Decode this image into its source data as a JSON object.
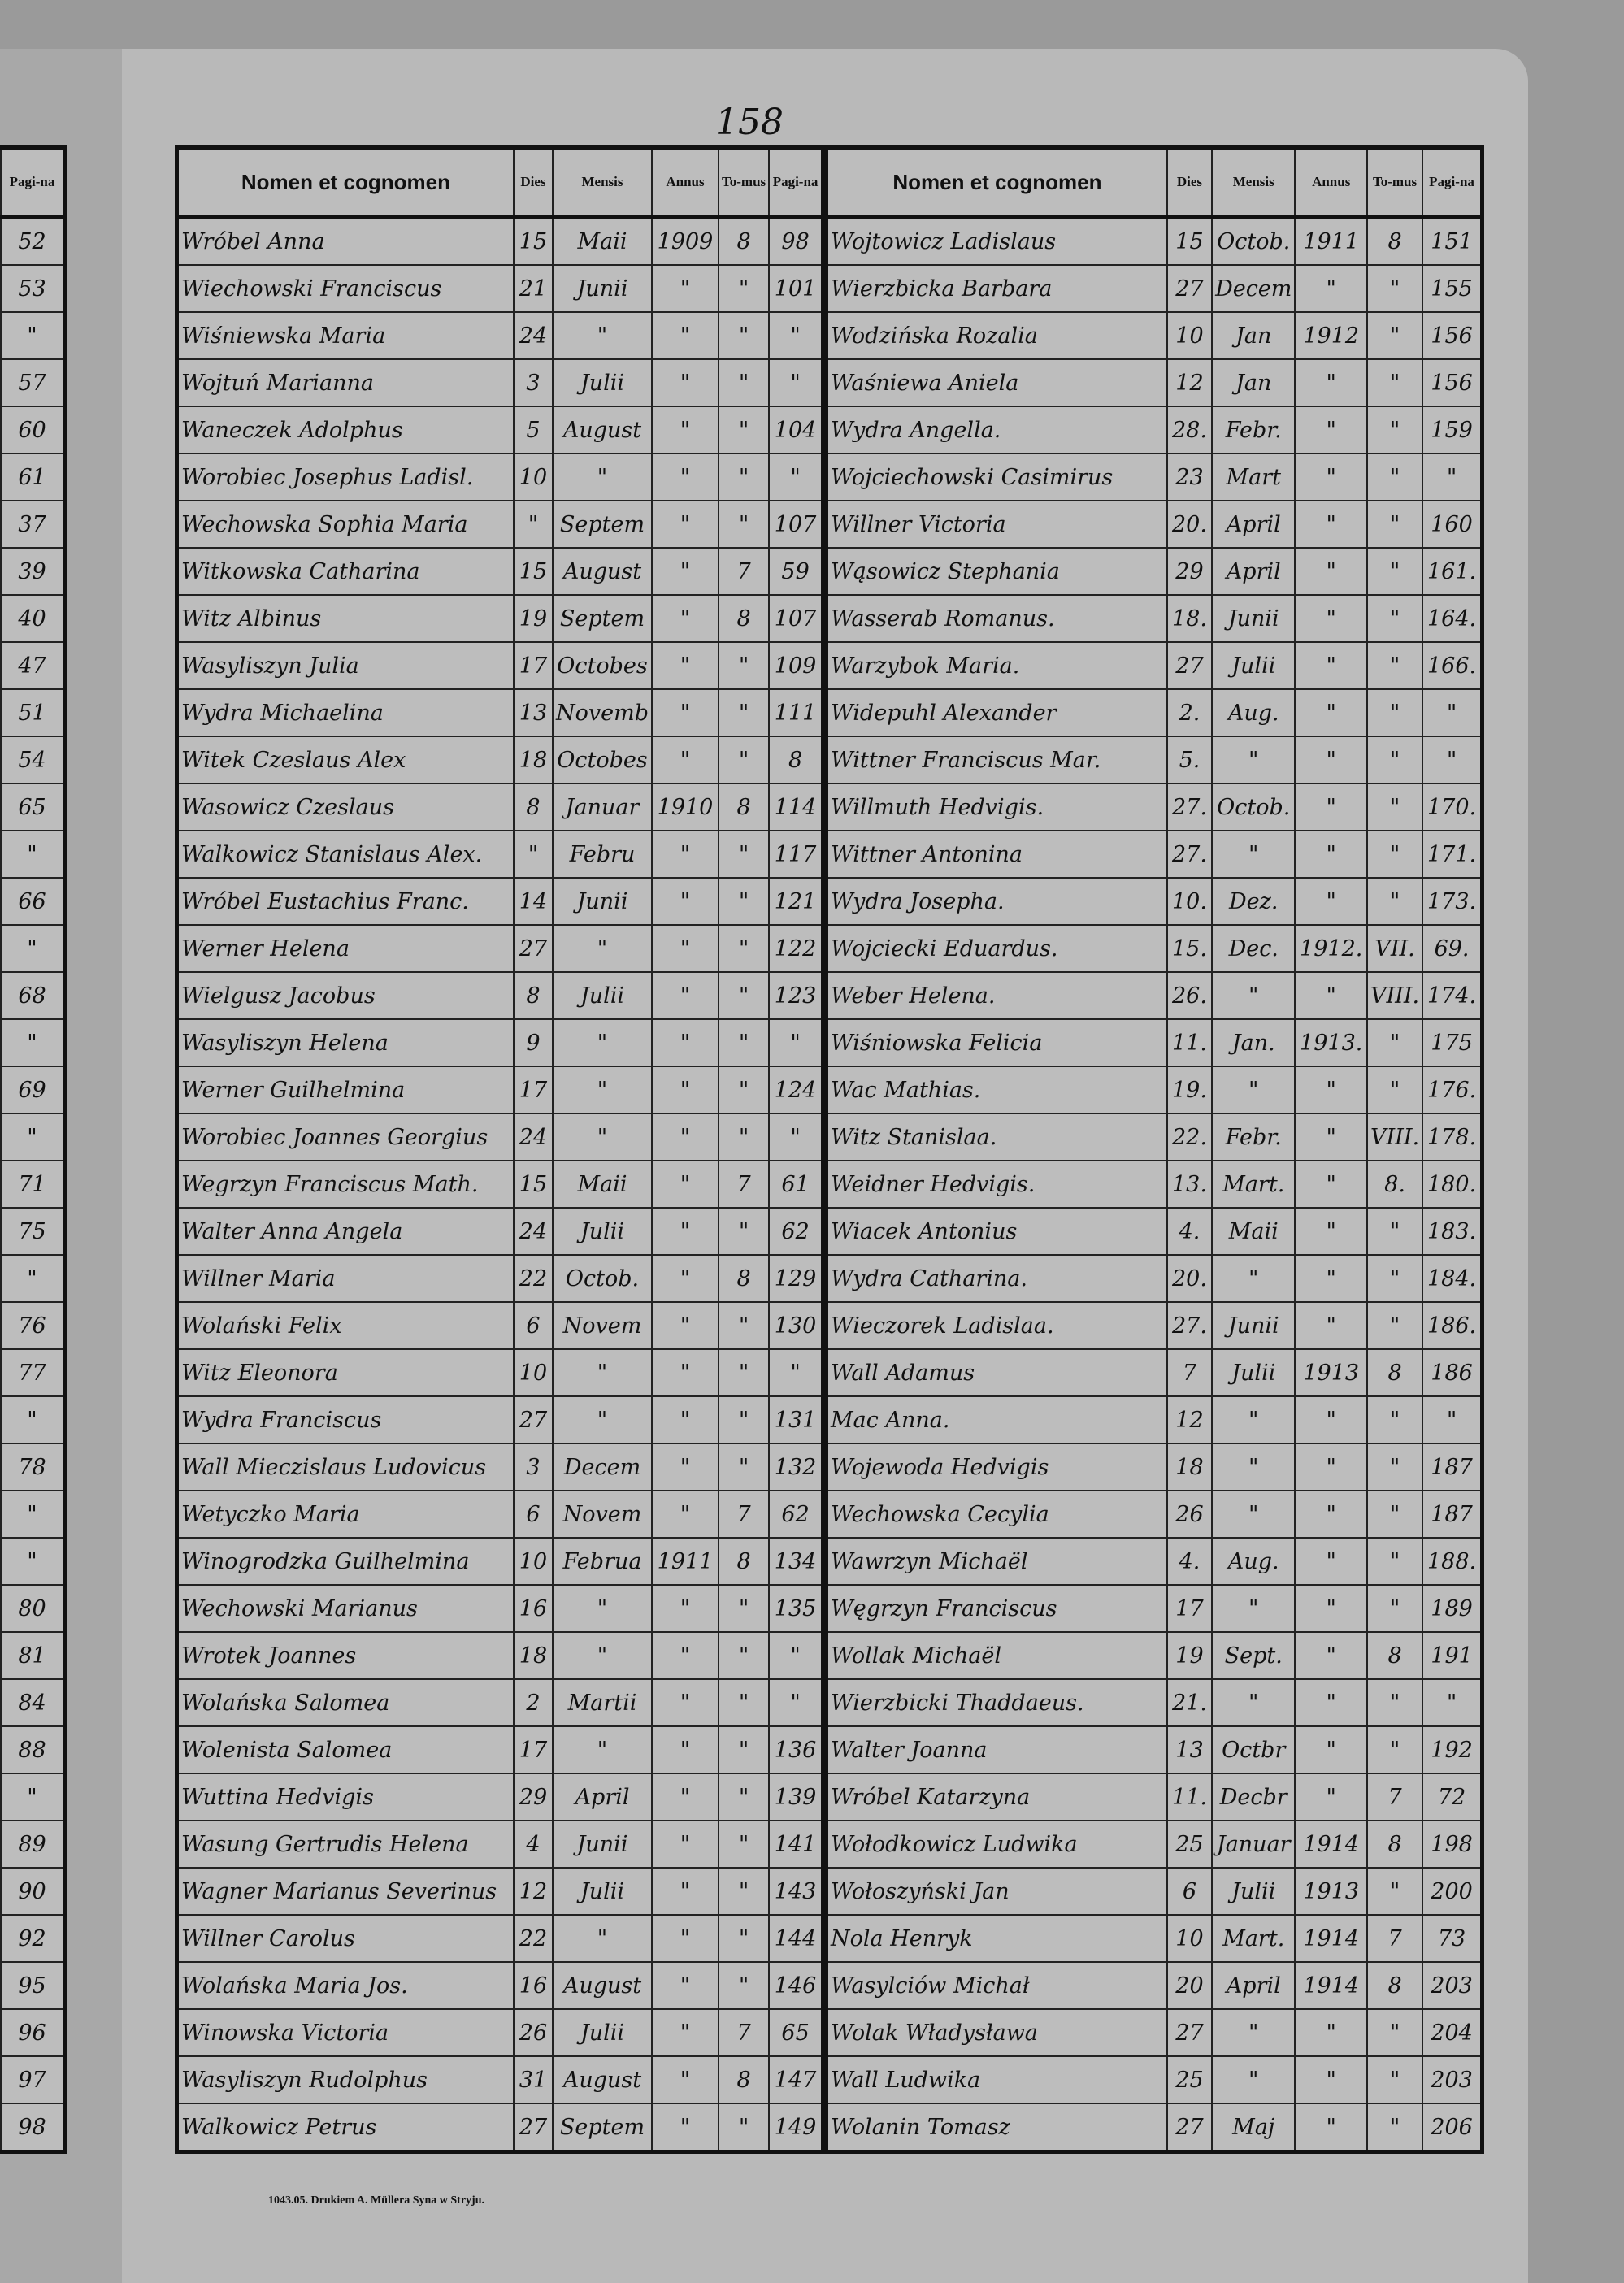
{
  "page_number": "158",
  "footer": "1043.05. Drukiem A. Müllera Syna w Stryju.",
  "headers": {
    "name": "Nomen et cognomen",
    "dies": "Dies",
    "mensis": "Mensis",
    "annus": "Annus",
    "tomus": "To-mus",
    "pagina": "Pagi-na"
  },
  "prev_page_pagina": [
    "52",
    "53",
    "\"",
    "57",
    "60",
    "61",
    "37",
    "39",
    "40",
    "47",
    "51",
    "54",
    "65",
    "\"",
    "66",
    "\"",
    "68",
    "\"",
    "69",
    "\"",
    "71",
    "75",
    "\"",
    "76",
    "77",
    "\"",
    "78",
    "\"",
    "\"",
    "80",
    "81",
    "84",
    "88",
    "\"",
    "89",
    "90",
    "92",
    "95",
    "96",
    "97",
    "98"
  ],
  "left_rows": [
    [
      "Wróbel Anna",
      "15",
      "Maii",
      "1909",
      "8",
      "98"
    ],
    [
      "Wiechowski Franciscus",
      "21",
      "Junii",
      "\"",
      "\"",
      "101"
    ],
    [
      "Wiśniewska Maria",
      "24",
      "\"",
      "\"",
      "\"",
      "\""
    ],
    [
      "Wojtuń Marianna",
      "3",
      "Julii",
      "\"",
      "\"",
      "\""
    ],
    [
      "Waneczek Adolphus",
      "5",
      "August",
      "\"",
      "\"",
      "104"
    ],
    [
      "Worobiec Josephus Ladisl.",
      "10",
      "\"",
      "\"",
      "\"",
      "\""
    ],
    [
      "Wechowska Sophia Maria",
      "\"",
      "Septem",
      "\"",
      "\"",
      "107"
    ],
    [
      "Witkowska Catharina",
      "15",
      "August",
      "\"",
      "7",
      "59"
    ],
    [
      "Witz Albinus",
      "19",
      "Septem",
      "\"",
      "8",
      "107"
    ],
    [
      "Wasyliszyn Julia",
      "17",
      "Octobes",
      "\"",
      "\"",
      "109"
    ],
    [
      "Wydra Michaelina",
      "13",
      "Novemb",
      "\"",
      "\"",
      "111"
    ],
    [
      "Witek Czeslaus Alex",
      "18",
      "Octobes",
      "\"",
      "\"",
      "8"
    ],
    [
      "Wasowicz Czeslaus",
      "8",
      "Januar",
      "1910",
      "8",
      "114"
    ],
    [
      "Walkowicz Stanislaus Alex.",
      "\"",
      "Febru",
      "\"",
      "\"",
      "117"
    ],
    [
      "Wróbel Eustachius Franc.",
      "14",
      "Junii",
      "\"",
      "\"",
      "121"
    ],
    [
      "Werner Helena",
      "27",
      "\"",
      "\"",
      "\"",
      "122"
    ],
    [
      "Wielgusz Jacobus",
      "8",
      "Julii",
      "\"",
      "\"",
      "123"
    ],
    [
      "Wasyliszyn Helena",
      "9",
      "\"",
      "\"",
      "\"",
      "\""
    ],
    [
      "Werner Guilhelmina",
      "17",
      "\"",
      "\"",
      "\"",
      "124"
    ],
    [
      "Worobiec Joannes Georgius",
      "24",
      "\"",
      "\"",
      "\"",
      "\""
    ],
    [
      "Wegrzyn Franciscus Math.",
      "15",
      "Maii",
      "\"",
      "7",
      "61"
    ],
    [
      "Walter Anna Angela",
      "24",
      "Julii",
      "\"",
      "\"",
      "62"
    ],
    [
      "Willner Maria",
      "22",
      "Octob.",
      "\"",
      "8",
      "129"
    ],
    [
      "Wolański Felix",
      "6",
      "Novem",
      "\"",
      "\"",
      "130"
    ],
    [
      "Witz Eleonora",
      "10",
      "\"",
      "\"",
      "\"",
      "\""
    ],
    [
      "Wydra Franciscus",
      "27",
      "\"",
      "\"",
      "\"",
      "131"
    ],
    [
      "Wall Mieczislaus Ludovicus",
      "3",
      "Decem",
      "\"",
      "\"",
      "132"
    ],
    [
      "Wetyczko Maria",
      "6",
      "Novem",
      "\"",
      "7",
      "62"
    ],
    [
      "Winogrodzka Guilhelmina",
      "10",
      "Februa",
      "1911",
      "8",
      "134"
    ],
    [
      "Wechowski Marianus",
      "16",
      "\"",
      "\"",
      "\"",
      "135"
    ],
    [
      "Wrotek Joannes",
      "18",
      "\"",
      "\"",
      "\"",
      "\""
    ],
    [
      "Wolańska Salomea",
      "2",
      "Martii",
      "\"",
      "\"",
      "\""
    ],
    [
      "Wolenista Salomea",
      "17",
      "\"",
      "\"",
      "\"",
      "136"
    ],
    [
      "Wuttina Hedvigis",
      "29",
      "April",
      "\"",
      "\"",
      "139"
    ],
    [
      "Wasung Gertrudis Helena",
      "4",
      "Junii",
      "\"",
      "\"",
      "141"
    ],
    [
      "Wagner Marianus Severinus",
      "12",
      "Julii",
      "\"",
      "\"",
      "143"
    ],
    [
      "Willner Carolus",
      "22",
      "\"",
      "\"",
      "\"",
      "144"
    ],
    [
      "Wolańska Maria Jos.",
      "16",
      "August",
      "\"",
      "\"",
      "146"
    ],
    [
      "Winowska Victoria",
      "26",
      "Julii",
      "\"",
      "7",
      "65"
    ],
    [
      "Wasyliszyn Rudolphus",
      "31",
      "August",
      "\"",
      "8",
      "147"
    ],
    [
      "Walkowicz Petrus",
      "27",
      "Septem",
      "\"",
      "\"",
      "149"
    ]
  ],
  "right_rows": [
    [
      "Wojtowicz Ladislaus",
      "15",
      "Octob.",
      "1911",
      "8",
      "151"
    ],
    [
      "Wierzbicka Barbara",
      "27",
      "Decem",
      "\"",
      "\"",
      "155"
    ],
    [
      "Wodzińska Rozalia",
      "10",
      "Jan",
      "1912",
      "\"",
      "156"
    ],
    [
      "Waśniewa Aniela",
      "12",
      "Jan",
      "\"",
      "\"",
      "156"
    ],
    [
      "Wydra Angella.",
      "28.",
      "Febr.",
      "\"",
      "\"",
      "159"
    ],
    [
      "Wojciechowski Casimirus",
      "23",
      "Mart",
      "\"",
      "\"",
      "\""
    ],
    [
      "Willner Victoria",
      "20.",
      "April",
      "\"",
      "\"",
      "160"
    ],
    [
      "Wąsowicz Stephania",
      "29",
      "April",
      "\"",
      "\"",
      "161."
    ],
    [
      "Wasserab Romanus.",
      "18.",
      "Junii",
      "\"",
      "\"",
      "164."
    ],
    [
      "Warzybok Maria.",
      "27",
      "Julii",
      "\"",
      "\"",
      "166."
    ],
    [
      "Widepuhl Alexander",
      "2.",
      "Aug.",
      "\"",
      "\"",
      "\""
    ],
    [
      "Wittner Franciscus Mar.",
      "5.",
      "\"",
      "\"",
      "\"",
      "\""
    ],
    [
      "Willmuth Hedvigis.",
      "27.",
      "Octob.",
      "\"",
      "\"",
      "170."
    ],
    [
      "Wittner Antonina",
      "27.",
      "\"",
      "\"",
      "\"",
      "171."
    ],
    [
      "Wydra Josepha.",
      "10.",
      "Dez.",
      "\"",
      "\"",
      "173."
    ],
    [
      "Wojciecki Eduardus.",
      "15.",
      "Dec.",
      "1912.",
      "VII.",
      "69."
    ],
    [
      "Weber Helena.",
      "26.",
      "\"",
      "\"",
      "VIII.",
      "174."
    ],
    [
      "Wiśniowska Felicia",
      "11.",
      "Jan.",
      "1913.",
      "\"",
      "175"
    ],
    [
      "Wac Mathias.",
      "19.",
      "\"",
      "\"",
      "\"",
      "176."
    ],
    [
      "Witz Stanislaa.",
      "22.",
      "Febr.",
      "\"",
      "VIII.",
      "178."
    ],
    [
      "Weidner Hedvigis.",
      "13.",
      "Mart.",
      "\"",
      "8.",
      "180."
    ],
    [
      "Wiacek Antonius",
      "4.",
      "Maii",
      "\"",
      "\"",
      "183."
    ],
    [
      "Wydra Catharina.",
      "20.",
      "\"",
      "\"",
      "\"",
      "184."
    ],
    [
      "Wieczorek Ladislaa.",
      "27.",
      "Junii",
      "\"",
      "\"",
      "186."
    ],
    [
      "Wall Adamus",
      "7",
      "Julii",
      "1913",
      "8",
      "186"
    ],
    [
      "Mac Anna.",
      "12",
      "\"",
      "\"",
      "\"",
      "\""
    ],
    [
      "Wojewoda Hedvigis",
      "18",
      "\"",
      "\"",
      "\"",
      "187"
    ],
    [
      "Wechowska Cecylia",
      "26",
      "\"",
      "\"",
      "\"",
      "187"
    ],
    [
      "Wawrzyn Michaël",
      "4.",
      "Aug.",
      "\"",
      "\"",
      "188."
    ],
    [
      "Węgrzyn Franciscus",
      "17",
      "\"",
      "\"",
      "\"",
      "189"
    ],
    [
      "Wollak Michaël",
      "19",
      "Sept.",
      "\"",
      "8",
      "191"
    ],
    [
      "Wierzbicki Thaddaeus.",
      "21.",
      "\"",
      "\"",
      "\"",
      "\""
    ],
    [
      "Walter Joanna",
      "13",
      "Octbr",
      "\"",
      "\"",
      "192"
    ],
    [
      "Wróbel Katarzyna",
      "11.",
      "Decbr",
      "\"",
      "7",
      "72"
    ],
    [
      "Wołodkowicz Ludwika",
      "25",
      "Januar",
      "1914",
      "8",
      "198"
    ],
    [
      "Wołoszyński Jan",
      "6",
      "Julii",
      "1913",
      "\"",
      "200"
    ],
    [
      "Nola Henryk",
      "10",
      "Mart.",
      "1914",
      "7",
      "73"
    ],
    [
      "Wasylciów Michał",
      "20",
      "April",
      "1914",
      "8",
      "203"
    ],
    [
      "Wolak Władysława",
      "27",
      "\"",
      "\"",
      "\"",
      "204"
    ],
    [
      "Wall Ludwika",
      "25",
      "\"",
      "\"",
      "\"",
      "203"
    ],
    [
      "Wolanin Tomasz",
      "27",
      "Maj",
      "\"",
      "\"",
      "206"
    ]
  ]
}
